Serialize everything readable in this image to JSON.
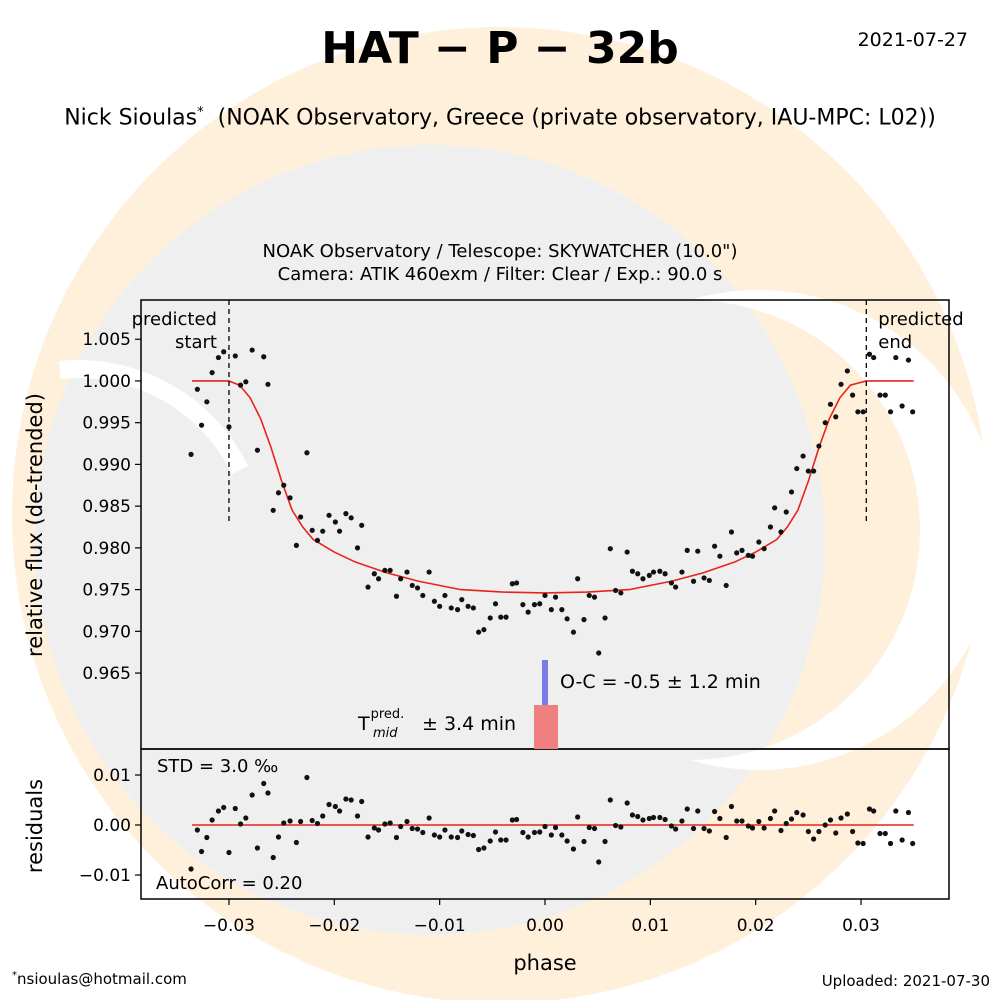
{
  "title": "HAT − P − 32b",
  "date": "2021-07-27",
  "observer": "Nick Sioulas",
  "note_mark": "*",
  "affiliation": "(NOAK Observatory, Greece (private observatory, IAU-MPC: L02))",
  "email": "nsioulas@hotmail.com",
  "uploaded": "Uploaded: 2021-07-30",
  "chart_data": [
    {
      "type": "scatter",
      "subtitle": [
        "NOAK Observatory / Telescope: SKYWATCHER (10.0\")",
        "Camera: ATIK 460exm / Filter: Clear / Exp.: 90.0 s"
      ],
      "ylabel": "relative flux (de-trended)",
      "xlim": [
        -0.03835,
        0.03835
      ],
      "ylim": [
        0.9559,
        1.0097
      ],
      "yticks": [
        0.965,
        {
          "value": 0.97,
          "label": "0.970"
        },
        0.975,
        {
          "value": 0.98,
          "label": "0.980"
        },
        0.985,
        {
          "value": 0.99,
          "label": "0.990"
        },
        0.995,
        {
          "value": 1,
          "label": "1.000"
        },
        1.005
      ],
      "predicted_start": {
        "x": -0.03,
        "label": [
          "predicted",
          "start"
        ]
      },
      "predicted_end": {
        "x": 0.0305,
        "label": [
          "predicted",
          "end"
        ]
      },
      "oc_label": "O-C = -0.5 ± 1.2 min",
      "tmid": {
        "symbol": "T",
        "sub": "mid",
        "sup": "pred.",
        "text": "± 3.4 min"
      },
      "x": [
        -0.0336,
        -0.033,
        -0.0326,
        -0.0321,
        -0.0316,
        -0.031,
        -0.0305,
        -0.03,
        -0.0294,
        -0.0289,
        -0.0284,
        -0.0278,
        -0.0273,
        -0.0267,
        -0.0263,
        -0.0258,
        -0.0253,
        -0.0248,
        -0.0242,
        -0.0236,
        -0.0232,
        -0.0226,
        -0.0221,
        -0.0216,
        -0.0211,
        -0.0205,
        -0.0199,
        -0.0195,
        -0.0189,
        -0.0184,
        -0.0178,
        -0.0174,
        -0.0168,
        -0.0162,
        -0.0158,
        -0.0152,
        -0.0147,
        -0.0141,
        -0.0137,
        -0.0131,
        -0.0126,
        -0.0121,
        -0.0116,
        -0.011,
        -0.0105,
        -0.01,
        -0.0095,
        -0.0089,
        -0.0083,
        -0.0079,
        -0.0073,
        -0.0068,
        -0.0063,
        -0.0058,
        -0.0052,
        -0.0047,
        -0.0042,
        -0.0037,
        -0.0031,
        -0.0027,
        -0.0021,
        -0.0016,
        -0.001,
        -0.0005,
        0.0,
        0.0006,
        0.001,
        0.0016,
        0.0021,
        0.0027,
        0.0031,
        0.0037,
        0.0042,
        0.0047,
        0.0051,
        0.0057,
        0.0062,
        0.0067,
        0.0072,
        0.0078,
        0.0083,
        0.0088,
        0.0093,
        0.0099,
        0.0103,
        0.0109,
        0.0114,
        0.012,
        0.0124,
        0.013,
        0.0135,
        0.0141,
        0.0145,
        0.0151,
        0.0156,
        0.0161,
        0.0166,
        0.0172,
        0.0177,
        0.0182,
        0.0187,
        0.0193,
        0.0197,
        0.0203,
        0.0208,
        0.0214,
        0.0218,
        0.0224,
        0.0229,
        0.0234,
        0.0239,
        0.0245,
        0.025,
        0.0255,
        0.026,
        0.0266,
        0.0271,
        0.0276,
        0.0281,
        0.0287,
        0.0292,
        0.0297,
        0.0302,
        0.0308,
        0.0312,
        0.0318,
        0.0323,
        0.0328,
        0.0333,
        0.0339,
        0.0345,
        0.0349
      ],
      "series": [
        {
          "color": "#111111",
          "values": [
            0.9912,
            0.999,
            0.9947,
            0.9975,
            1.001,
            1.0028,
            1.0035,
            0.9945,
            1.003,
            0.9995,
            0.9999,
            1.0037,
            0.9917,
            1.0029,
            0.9996,
            0.9845,
            0.9866,
            0.9875,
            0.986,
            0.9803,
            0.9837,
            0.9914,
            0.9821,
            0.9809,
            0.982,
            0.9839,
            0.9831,
            0.982,
            0.9841,
            0.9836,
            0.98,
            0.9827,
            0.9753,
            0.9769,
            0.9763,
            0.9773,
            0.9773,
            0.9742,
            0.9763,
            0.9771,
            0.9755,
            0.9752,
            0.9743,
            0.9771,
            0.9736,
            0.973,
            0.9743,
            0.9728,
            0.9726,
            0.9738,
            0.973,
            0.9728,
            0.9699,
            0.9702,
            0.9716,
            0.9733,
            0.9717,
            0.9717,
            0.9757,
            0.9758,
            0.9732,
            0.9723,
            0.9732,
            0.9733,
            0.9743,
            0.9726,
            0.9741,
            0.9726,
            0.9715,
            0.9699,
            0.9763,
            0.9714,
            0.9743,
            0.9741,
            0.9674,
            0.9716,
            0.9799,
            0.9749,
            0.9746,
            0.9795,
            0.9772,
            0.9769,
            0.9763,
            0.9767,
            0.9771,
            0.9772,
            0.9769,
            0.9758,
            0.9753,
            0.9771,
            0.9797,
            0.976,
            0.9796,
            0.9764,
            0.9761,
            0.9802,
            0.979,
            0.9755,
            0.9819,
            0.9794,
            0.9797,
            0.9791,
            0.979,
            0.9807,
            0.9799,
            0.9825,
            0.9848,
            0.9819,
            0.9843,
            0.9867,
            0.9895,
            0.991,
            0.9892,
            0.9892,
            0.9922,
            0.995,
            0.9972,
            0.9957,
            0.9996,
            1.0012,
            0.9983,
            0.9963,
            0.9963,
            1.0032,
            1.0028,
            0.9983,
            0.9983,
            0.9963,
            1.0028,
            0.997,
            1.0025,
            0.9963
          ]
        }
      ],
      "model": {
        "color": "#e8231a",
        "x": [
          -0.0335,
          -0.03,
          -0.029,
          -0.028,
          -0.027,
          -0.026,
          -0.025,
          -0.024,
          -0.023,
          -0.022,
          -0.02,
          -0.018,
          -0.015,
          -0.012,
          -0.008,
          -0.004,
          0.0,
          0.004,
          0.008,
          0.012,
          0.015,
          0.018,
          0.02,
          0.022,
          0.023,
          0.024,
          0.025,
          0.026,
          0.027,
          0.028,
          0.029,
          0.0305,
          0.035
        ],
        "values": [
          1.0,
          1.0,
          0.9995,
          0.998,
          0.9955,
          0.992,
          0.988,
          0.9845,
          0.9825,
          0.981,
          0.9795,
          0.9783,
          0.977,
          0.976,
          0.975,
          0.9747,
          0.9746,
          0.9747,
          0.975,
          0.976,
          0.977,
          0.9783,
          0.9795,
          0.981,
          0.9825,
          0.9845,
          0.988,
          0.992,
          0.9955,
          0.998,
          0.9995,
          1.0,
          1.0
        ]
      }
    },
    {
      "type": "scatter",
      "ylabel": "residuals",
      "xlabel": "phase",
      "std_label": "STD = 3.0 ‰",
      "autocorr_label": "AutoCorr = 0.20",
      "xlim": [
        -0.03835,
        0.03835
      ],
      "xticks": [
        {
          "value": -0.03,
          "label": "−0.03"
        },
        {
          "value": -0.02,
          "label": "−0.02"
        },
        {
          "value": -0.01,
          "label": "−0.01"
        },
        {
          "value": 0,
          "label": "0.00"
        },
        0.01,
        0.02,
        0.03
      ],
      "ylim": [
        -0.0148,
        0.0152
      ],
      "yticks": [
        {
          "value": -0.01,
          "label": "−0.01"
        },
        {
          "value": 0,
          "label": "0.00"
        },
        0.01
      ],
      "series": [
        {
          "color": "#111111",
          "values": [
            -0.0088,
            -0.001,
            -0.0053,
            -0.0025,
            0.001,
            0.0028,
            0.0035,
            -0.0055,
            0.0033,
            0.0002,
            0.0014,
            0.006,
            -0.0046,
            0.0083,
            0.0064,
            -0.0065,
            -0.0024,
            0.0004,
            0.0008,
            -0.0035,
            0.0007,
            0.0095,
            0.0009,
            0.0003,
            0.0018,
            0.0041,
            0.0037,
            0.0028,
            0.0052,
            0.005,
            0.0018,
            0.0047,
            -0.0024,
            -0.0006,
            -0.001,
            0.0002,
            0.0004,
            -0.0025,
            -0.0003,
            0.0007,
            -0.0007,
            -0.0008,
            -0.0015,
            0.0014,
            -0.002,
            -0.0024,
            -0.001,
            -0.0024,
            -0.0025,
            -0.0012,
            -0.0019,
            -0.0021,
            -0.0049,
            -0.0046,
            -0.0032,
            -0.0014,
            -0.003,
            -0.003,
            0.001,
            0.0011,
            -0.0015,
            -0.0024,
            -0.0015,
            -0.0014,
            -0.0003,
            -0.002,
            -0.0005,
            -0.002,
            -0.0032,
            -0.0048,
            0.0016,
            -0.0033,
            -0.0005,
            -0.0007,
            -0.0074,
            -0.0033,
            0.005,
            -0.0001,
            -0.0004,
            0.0044,
            0.002,
            0.0017,
            0.001,
            0.0013,
            0.0015,
            0.0015,
            0.0011,
            -0.0002,
            -0.0008,
            0.0008,
            0.0032,
            -0.0007,
            0.0028,
            -0.0007,
            -0.0012,
            0.0027,
            0.0013,
            -0.0025,
            0.0037,
            0.0008,
            0.0008,
            -0.0002,
            -0.0006,
            0.0007,
            -0.0006,
            0.0013,
            0.0028,
            -0.0011,
            0.0003,
            0.0012,
            0.0025,
            0.002,
            -0.0013,
            -0.0028,
            -0.0013,
            0.0,
            0.001,
            -0.0016,
            0.0014,
            0.0022,
            -0.0013,
            -0.0036,
            -0.0037,
            0.0032,
            0.0028,
            -0.0017,
            -0.0017,
            -0.0037,
            0.0028,
            -0.003,
            0.0025,
            -0.0037
          ]
        }
      ],
      "model": {
        "color": "#e8231a",
        "x": [
          -0.0335,
          0.035
        ],
        "values": [
          0,
          0
        ]
      }
    }
  ]
}
